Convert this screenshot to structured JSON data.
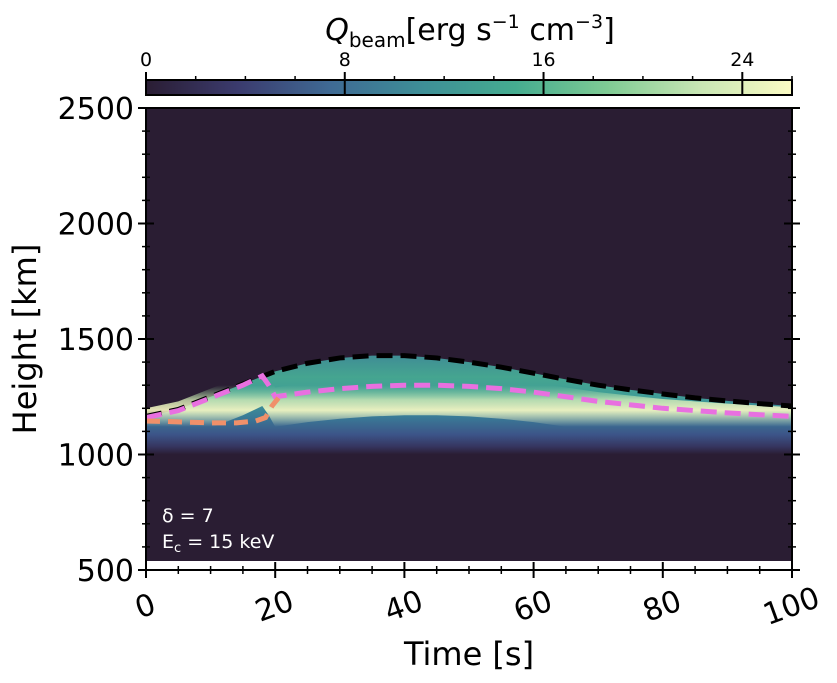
{
  "chart_data": {
    "type": "heatmap",
    "title": "",
    "colorbar": {
      "label_symbol": "Q",
      "label_sub": "beam",
      "label_units_pre": "[erg s",
      "label_exp1": "−1",
      "label_units_mid": " cm",
      "label_exp2": "−3",
      "label_units_post": "]",
      "range": [
        0,
        26
      ],
      "ticks": [
        0,
        8,
        16,
        24
      ],
      "tick_labels": [
        "0",
        "8",
        "16",
        "24"
      ],
      "colormap": [
        "#2a1d33",
        "#3b3b6e",
        "#3f6a94",
        "#3e8f97",
        "#45ac90",
        "#7fcb94",
        "#c8e6b4",
        "#fbfbc4"
      ]
    },
    "xlabel": "Time [s]",
    "ylabel": "Height [km]",
    "xlim": [
      0,
      100
    ],
    "ylim": [
      500,
      2500
    ],
    "xticks": [
      0,
      20,
      40,
      60,
      80,
      100
    ],
    "xtick_labels": [
      "0",
      "20",
      "40",
      "60",
      "80",
      "100"
    ],
    "yticks": [
      500,
      1000,
      1500,
      2000,
      2500
    ],
    "ytick_labels": [
      "500",
      "1000",
      "1500",
      "2000",
      "2500"
    ],
    "background_color": "#2a1d33",
    "series": [
      {
        "style": "black-dashed",
        "color": "#000000",
        "x": [
          0,
          5,
          10,
          15,
          20,
          25,
          30,
          35,
          40,
          45,
          50,
          55,
          60,
          65,
          70,
          75,
          80,
          85,
          90,
          95,
          100
        ],
        "y": [
          1165,
          1195,
          1250,
          1305,
          1360,
          1395,
          1418,
          1428,
          1428,
          1418,
          1400,
          1378,
          1352,
          1325,
          1300,
          1280,
          1262,
          1245,
          1232,
          1220,
          1210
        ]
      },
      {
        "style": "pink-dashed",
        "color": "#e870e0",
        "x": [
          0,
          5,
          10,
          15,
          18,
          19,
          20,
          25,
          30,
          35,
          40,
          45,
          50,
          55,
          60,
          65,
          70,
          75,
          80,
          85,
          90,
          95,
          100
        ],
        "y": [
          1160,
          1190,
          1245,
          1300,
          1340,
          1300,
          1250,
          1270,
          1285,
          1295,
          1300,
          1300,
          1295,
          1285,
          1270,
          1250,
          1230,
          1215,
          1200,
          1190,
          1180,
          1172,
          1165
        ]
      },
      {
        "style": "orange-dashed",
        "color": "#f0906a",
        "x": [
          0,
          3,
          6,
          10,
          14,
          17,
          18.5,
          19.5,
          20.5
        ],
        "y": [
          1145,
          1143,
          1140,
          1137,
          1137,
          1145,
          1160,
          1210,
          1245
        ]
      }
    ],
    "annotations": [
      {
        "text": "δ = 7"
      },
      {
        "text": "E",
        "sub": "c",
        "post": " = 15 keV"
      }
    ]
  }
}
